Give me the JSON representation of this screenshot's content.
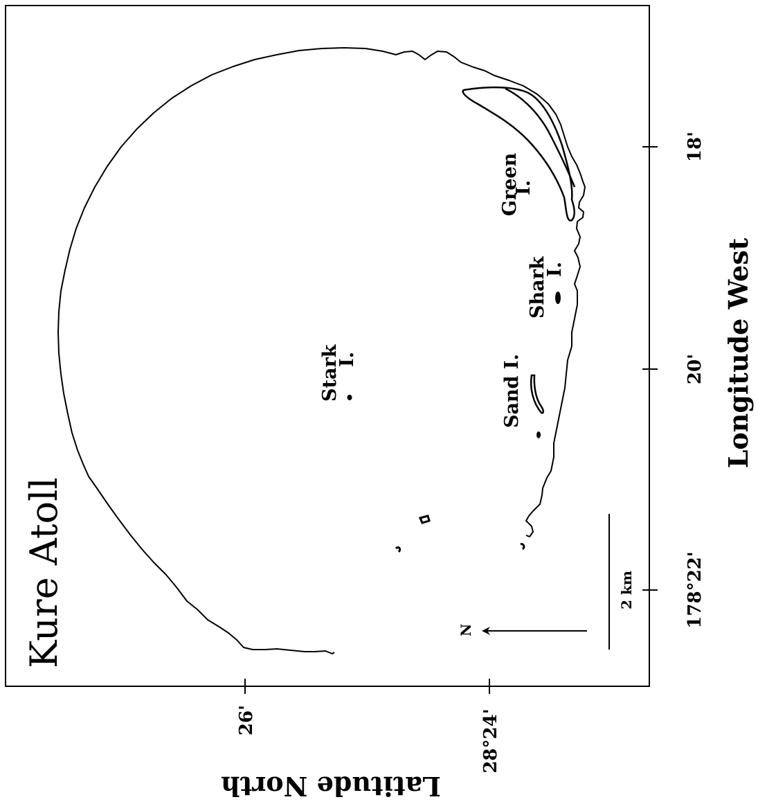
{
  "map": {
    "title": "Kure Atoll",
    "axes": {
      "latitude_title": "Latitude North",
      "longitude_title": "Longitude West",
      "latitude_ticks": [
        "26'",
        "28°24'"
      ],
      "longitude_ticks": [
        "18'",
        "20'",
        "178°22'"
      ]
    },
    "islands": {
      "green": [
        "Green",
        "I."
      ],
      "shark": [
        "Shark",
        "I."
      ],
      "sand": "Sand I.",
      "stark": [
        "Stark",
        "I."
      ]
    },
    "scale_bar_label": "2 km",
    "north_arrow_label": "N"
  }
}
